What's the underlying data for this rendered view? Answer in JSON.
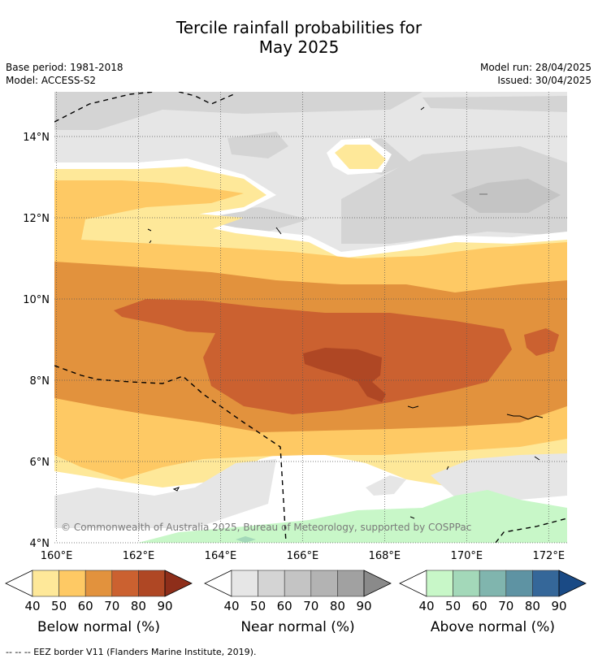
{
  "title_line1": "Tercile rainfall probabilities for",
  "title_line2": "May 2025",
  "base_period": "Base period: 1981-2018",
  "model": "Model: ACCESS-S2",
  "model_run": "Model run: 28/04/2025",
  "issued": "Issued: 30/04/2025",
  "copyright": "© Commonwealth of Australia 2025, Bureau of Meteorology, supported by COSPPac",
  "map": {
    "lat_labels": [
      "14°N",
      "12°N",
      "10°N",
      "8°N",
      "6°N",
      "4°N"
    ],
    "lon_labels": [
      "160°E",
      "162°E",
      "164°E",
      "166°E",
      "168°E",
      "170°E",
      "172°E"
    ],
    "lat_values": [
      14,
      12,
      10,
      8,
      6,
      4
    ],
    "lon_values": [
      160,
      162,
      164,
      166,
      168,
      170,
      172
    ],
    "lon_range": [
      159.95,
      172.45
    ],
    "lat_range": [
      4,
      15.1
    ]
  },
  "legends": [
    {
      "title": "Below normal (%)",
      "ticks": [
        "40",
        "50",
        "60",
        "70",
        "80",
        "90"
      ],
      "colors": [
        "#fee899",
        "#fec964",
        "#e2923d",
        "#cb6130",
        "#af4724",
        "#8e2e1a"
      ]
    },
    {
      "title": "Near normal (%)",
      "ticks": [
        "40",
        "50",
        "60",
        "70",
        "80",
        "90"
      ],
      "colors": [
        "#e6e6e6",
        "#d4d4d4",
        "#c4c4c4",
        "#b3b3b3",
        "#a1a1a1",
        "#8a8a8a"
      ]
    },
    {
      "title": "Above normal (%)",
      "ticks": [
        "40",
        "50",
        "60",
        "70",
        "80",
        "90"
      ],
      "colors": [
        "#c8f7c8",
        "#a3d8b9",
        "#80b5ae",
        "#5e93a3",
        "#356799",
        "#1a4a85"
      ]
    }
  ],
  "footer": "--  --  -- EEZ border V11 (Flanders Marine Institute, 2019)."
}
